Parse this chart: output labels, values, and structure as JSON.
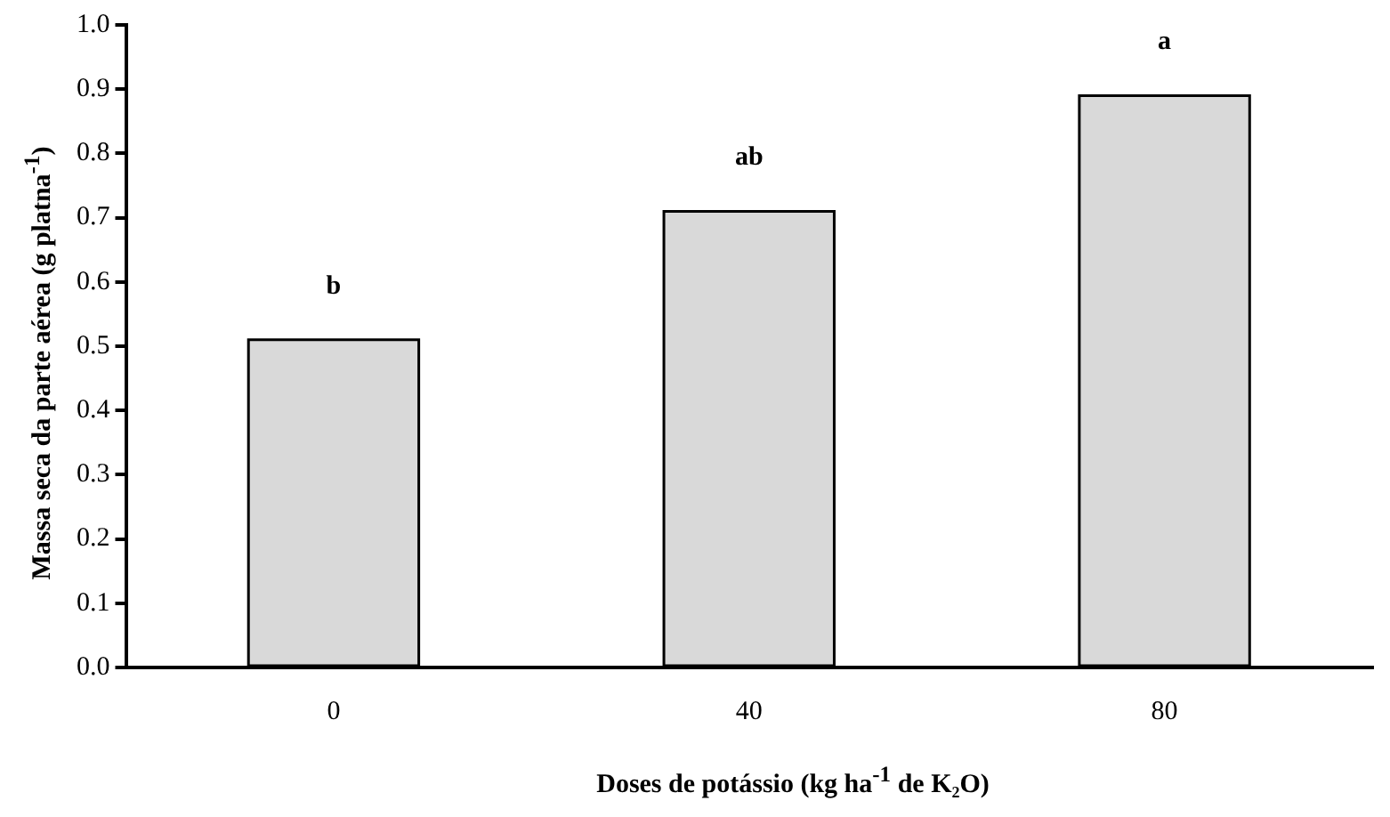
{
  "chart_data": {
    "type": "bar",
    "xlabel": "Doses de potássio (kg ha$^{-1}$ de K₂O)",
    "ylabel": "Massa seca da parte aérea (g platna$^{-1}$)",
    "categories": [
      "0",
      "40",
      "80"
    ],
    "values": [
      0.51,
      0.71,
      0.89
    ],
    "color": "#d9d9d9",
    "ylim": [
      0,
      1
    ],
    "yticks": [
      {
        "value": 0,
        "label": "0.0"
      },
      {
        "value": 0.1,
        "label": "0.1"
      },
      {
        "value": 0.2,
        "label": "0.2"
      },
      {
        "value": 0.3,
        "label": "0.3"
      },
      {
        "value": 0.4,
        "label": "0.4"
      },
      {
        "value": 0.5,
        "label": "0.5"
      },
      {
        "value": 0.6,
        "label": "0.6"
      },
      {
        "value": 0.7,
        "label": "0.7"
      },
      {
        "value": 0.8,
        "label": "0.8"
      },
      {
        "value": 0.9,
        "label": "0.9"
      },
      {
        "value": 1,
        "label": "1.0"
      }
    ],
    "annotations": [
      {
        "text": "b",
        "x": "0",
        "y": 0.51
      },
      {
        "text": "ab",
        "x": "40",
        "y": 0.71
      },
      {
        "text": "a",
        "x": "80",
        "y": 0.89
      }
    ],
    "grid": false,
    "legend": false
  }
}
